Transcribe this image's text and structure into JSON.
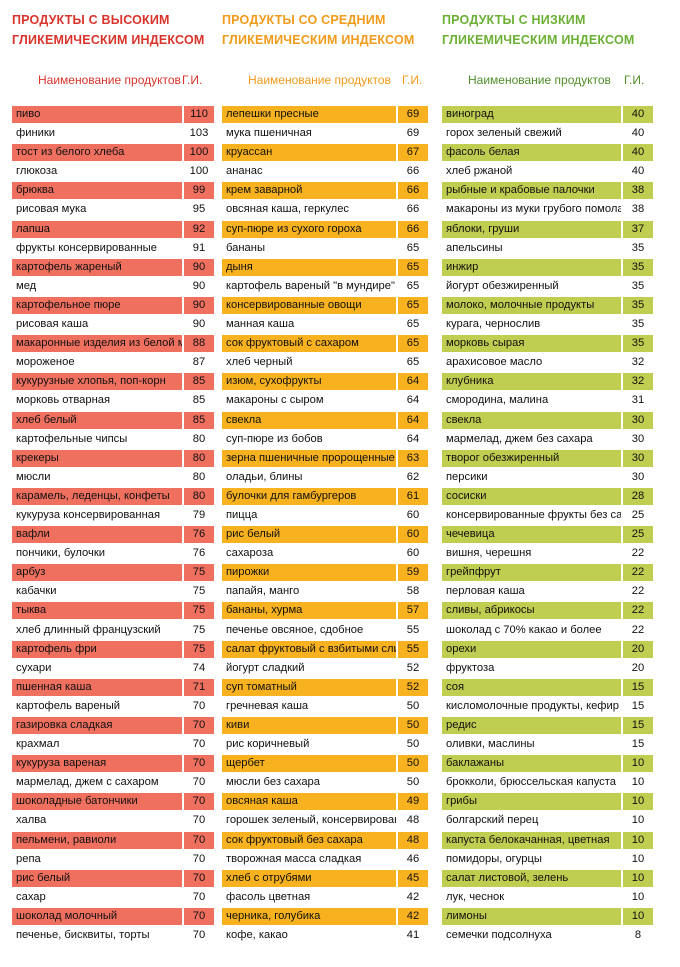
{
  "colors": {
    "high": "#f07060",
    "medium": "#f8b21f",
    "low": "#bfce50"
  },
  "columns": [
    {
      "title_line1": "ПРОДУКТЫ С ВЫСОКИМ",
      "title_line2": "ГЛИКЕМИЧЕСКИМ ИНДЕКСОМ",
      "header_name": "Наименование продуктов",
      "header_gi": "Г.И.",
      "rows": [
        {
          "name": "пиво",
          "gi": "110"
        },
        {
          "name": "финики",
          "gi": "103"
        },
        {
          "name": "тост из белого хлеба",
          "gi": "100"
        },
        {
          "name": "глюкоза",
          "gi": "100"
        },
        {
          "name": "брюква",
          "gi": "99"
        },
        {
          "name": "рисовая мука",
          "gi": "95"
        },
        {
          "name": "лапша",
          "gi": "92"
        },
        {
          "name": "фрукты консервированные",
          "gi": "91"
        },
        {
          "name": "картофель жареный",
          "gi": "90"
        },
        {
          "name": "мед",
          "gi": "90"
        },
        {
          "name": "картофельное пюре",
          "gi": "90"
        },
        {
          "name": "рисовая каша",
          "gi": "90"
        },
        {
          "name": "макаронные изделия из белой му",
          "gi": "88"
        },
        {
          "name": "мороженое",
          "gi": "87"
        },
        {
          "name": "кукурузные хлопья, поп-корн",
          "gi": "85"
        },
        {
          "name": "морковь отварная",
          "gi": "85"
        },
        {
          "name": "хлеб белый",
          "gi": "85"
        },
        {
          "name": "картофельные чипсы",
          "gi": "80"
        },
        {
          "name": "крекеры",
          "gi": "80"
        },
        {
          "name": "мюсли",
          "gi": "80"
        },
        {
          "name": "карамель, леденцы, конфеты",
          "gi": "80"
        },
        {
          "name": "кукуруза консервированная",
          "gi": "79"
        },
        {
          "name": "вафли",
          "gi": "76"
        },
        {
          "name": "пончики, булочки",
          "gi": "76"
        },
        {
          "name": "арбуз",
          "gi": "75"
        },
        {
          "name": "кабачки",
          "gi": "75"
        },
        {
          "name": "тыква",
          "gi": "75"
        },
        {
          "name": "хлеб длинный французский",
          "gi": "75"
        },
        {
          "name": "картофель фри",
          "gi": "75"
        },
        {
          "name": "сухари",
          "gi": "74"
        },
        {
          "name": "пшенная каша",
          "gi": "71"
        },
        {
          "name": "картофель вареный",
          "gi": "70"
        },
        {
          "name": "газировка сладкая",
          "gi": "70"
        },
        {
          "name": "крахмал",
          "gi": "70"
        },
        {
          "name": "кукуруза вареная",
          "gi": "70"
        },
        {
          "name": "мармелад, джем с сахаром",
          "gi": "70"
        },
        {
          "name": "шоколадные батончики",
          "gi": "70"
        },
        {
          "name": "халва",
          "gi": "70"
        },
        {
          "name": "пельмени, равиоли",
          "gi": "70"
        },
        {
          "name": "репа",
          "gi": "70"
        },
        {
          "name": "рис белый",
          "gi": "70"
        },
        {
          "name": "сахар",
          "gi": "70"
        },
        {
          "name": "шоколад молочный",
          "gi": "70"
        },
        {
          "name": "печенье, бисквиты, торты",
          "gi": "70"
        }
      ]
    },
    {
      "title_line1": "ПРОДУКТЫ СО СРЕДНИМ",
      "title_line2": "ГЛИКЕМИЧЕСКИМ ИНДЕКСОМ",
      "header_name": "Наименование продуктов",
      "header_gi": "Г.И.",
      "rows": [
        {
          "name": "лепешки пресные",
          "gi": "69"
        },
        {
          "name": "мука пшеничная",
          "gi": "69"
        },
        {
          "name": "круассан",
          "gi": "67"
        },
        {
          "name": "ананас",
          "gi": "66"
        },
        {
          "name": "крем заварной",
          "gi": "66"
        },
        {
          "name": "овсяная каша, геркулес",
          "gi": "66"
        },
        {
          "name": "суп-пюре из сухого гороха",
          "gi": "66"
        },
        {
          "name": "бананы",
          "gi": "65"
        },
        {
          "name": "дыня",
          "gi": "65"
        },
        {
          "name": "картофель вареный \"в мундире\"",
          "gi": "65"
        },
        {
          "name": "консервированные овощи",
          "gi": "65"
        },
        {
          "name": "манная каша",
          "gi": "65"
        },
        {
          "name": "сок фруктовый с сахаром",
          "gi": "65"
        },
        {
          "name": "хлеб черный",
          "gi": "65"
        },
        {
          "name": "изюм, сухофрукты",
          "gi": "64"
        },
        {
          "name": "макароны с сыром",
          "gi": "64"
        },
        {
          "name": "свекла",
          "gi": "64"
        },
        {
          "name": "суп-пюре из бобов",
          "gi": "64"
        },
        {
          "name": "зерна пшеничные пророщенные",
          "gi": "63"
        },
        {
          "name": "оладьи, блины",
          "gi": "62"
        },
        {
          "name": "булочки для гамбургеров",
          "gi": "61"
        },
        {
          "name": "пицца",
          "gi": "60"
        },
        {
          "name": "рис белый",
          "gi": "60"
        },
        {
          "name": "сахароза",
          "gi": "60"
        },
        {
          "name": "пирожки",
          "gi": "59"
        },
        {
          "name": "папайя, манго",
          "gi": "58"
        },
        {
          "name": "бананы, хурма",
          "gi": "57"
        },
        {
          "name": "печенье овсяное, сдобное",
          "gi": "55"
        },
        {
          "name": "салат фруктовый с взбитыми сливками",
          "gi": "55"
        },
        {
          "name": "йогурт сладкий",
          "gi": "52"
        },
        {
          "name": "суп томатный",
          "gi": "52"
        },
        {
          "name": "гречневая каша",
          "gi": "50"
        },
        {
          "name": "киви",
          "gi": "50"
        },
        {
          "name": "рис коричневый",
          "gi": "50"
        },
        {
          "name": "щербет",
          "gi": "50"
        },
        {
          "name": "мюсли без сахара",
          "gi": "50"
        },
        {
          "name": "овсяная каша",
          "gi": "49"
        },
        {
          "name": "горошек зеленый, консервированный",
          "gi": "48"
        },
        {
          "name": "сок фруктовый без сахара",
          "gi": "48"
        },
        {
          "name": "творожная масса сладкая",
          "gi": "46"
        },
        {
          "name": "хлеб с отрубями",
          "gi": "45"
        },
        {
          "name": "фасоль цветная",
          "gi": "42"
        },
        {
          "name": "черника, голубика",
          "gi": "42"
        },
        {
          "name": "кофе, какао",
          "gi": "41"
        }
      ]
    },
    {
      "title_line1": "ПРОДУКТЫ С НИЗКИМ",
      "title_line2": "ГЛИКЕМИЧЕСКИМ ИНДЕКСОМ",
      "header_name": "Наименование продуктов",
      "header_gi": "Г.И.",
      "rows": [
        {
          "name": "виноград",
          "gi": "40"
        },
        {
          "name": "горох зеленый свежий",
          "gi": "40"
        },
        {
          "name": "фасоль белая",
          "gi": "40"
        },
        {
          "name": "хлеб ржаной",
          "gi": "40"
        },
        {
          "name": "рыбные и крабовые палочки",
          "gi": "38"
        },
        {
          "name": "макароны из муки грубого помола",
          "gi": "38"
        },
        {
          "name": "яблоки, груши",
          "gi": "37"
        },
        {
          "name": "апельсины",
          "gi": "35"
        },
        {
          "name": "инжир",
          "gi": "35"
        },
        {
          "name": "йогурт обезжиренный",
          "gi": "35"
        },
        {
          "name": "молоко, молочные продукты",
          "gi": "35"
        },
        {
          "name": "курага, чернослив",
          "gi": "35"
        },
        {
          "name": "морковь сырая",
          "gi": "35"
        },
        {
          "name": "арахисовое масло",
          "gi": "32"
        },
        {
          "name": "клубника",
          "gi": "32"
        },
        {
          "name": "смородина, малина",
          "gi": "31"
        },
        {
          "name": "свекла",
          "gi": "30"
        },
        {
          "name": "мармелад, джем без сахара",
          "gi": "30"
        },
        {
          "name": "творог обезжиренный",
          "gi": "30"
        },
        {
          "name": "персики",
          "gi": "30"
        },
        {
          "name": "сосиски",
          "gi": "28"
        },
        {
          "name": "консервированные фрукты без сахара",
          "gi": "25"
        },
        {
          "name": "чечевица",
          "gi": "25"
        },
        {
          "name": "вишня, черешня",
          "gi": "22"
        },
        {
          "name": "грейпфрут",
          "gi": "22"
        },
        {
          "name": "перловая каша",
          "gi": "22"
        },
        {
          "name": "сливы, абрикосы",
          "gi": "22"
        },
        {
          "name": "шоколад с 70% какао и более",
          "gi": "22"
        },
        {
          "name": "орехи",
          "gi": "20"
        },
        {
          "name": "фруктоза",
          "gi": "20"
        },
        {
          "name": "соя",
          "gi": "15"
        },
        {
          "name": "кисломолочные продукты, кефир",
          "gi": "15"
        },
        {
          "name": "редис",
          "gi": "15"
        },
        {
          "name": "оливки, маслины",
          "gi": "15"
        },
        {
          "name": "баклажаны",
          "gi": "10"
        },
        {
          "name": "брокколи, брюссельская капуста",
          "gi": "10"
        },
        {
          "name": "грибы",
          "gi": "10"
        },
        {
          "name": "болгарский перец",
          "gi": "10"
        },
        {
          "name": "капуста белокачанная, цветная",
          "gi": "10"
        },
        {
          "name": "помидоры, огурцы",
          "gi": "10"
        },
        {
          "name": "салат листовой, зелень",
          "gi": "10"
        },
        {
          "name": "лук, чеснок",
          "gi": "10"
        },
        {
          "name": "лимоны",
          "gi": "10"
        },
        {
          "name": "семечки подсолнуха",
          "gi": "8"
        }
      ]
    }
  ]
}
